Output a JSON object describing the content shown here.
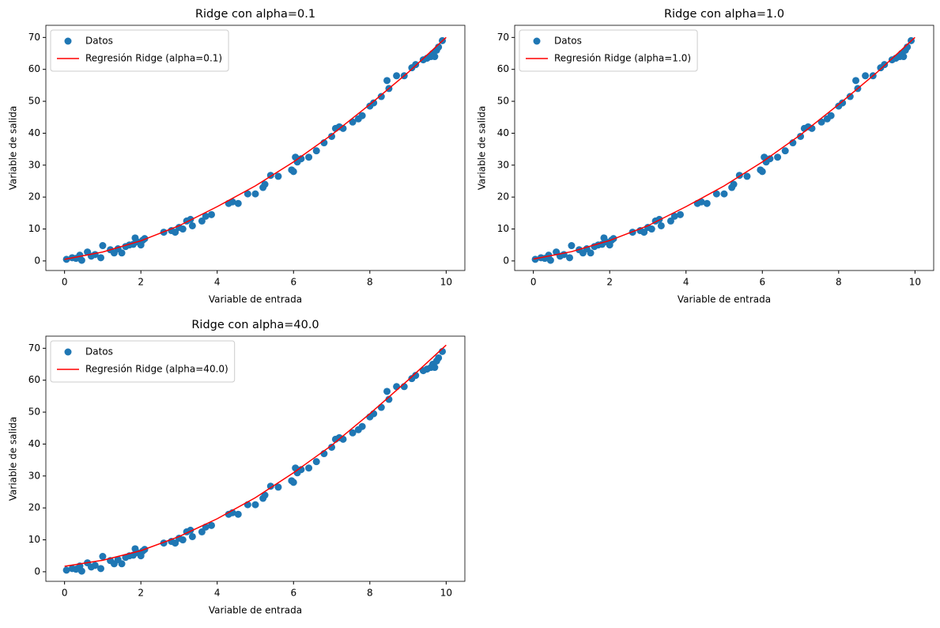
{
  "chart_data": [
    {
      "type": "scatter",
      "title": "Ridge con alpha=0.1",
      "xlabel": "Variable de entrada",
      "ylabel": "Variable de salida",
      "xlim": [
        -0.49,
        10.49
      ],
      "ylim": [
        -3,
        73.8
      ],
      "xticks": [
        0,
        2,
        4,
        6,
        8,
        10
      ],
      "yticks": [
        0,
        10,
        20,
        30,
        40,
        50,
        60,
        70
      ],
      "legend": "upper left",
      "series": [
        {
          "name": "Datos",
          "type": "scatter",
          "color": "#1f77b4",
          "x": [
            0.05,
            0.2,
            0.3,
            0.4,
            0.45,
            0.6,
            0.7,
            0.8,
            0.95,
            1.0,
            1.2,
            1.3,
            1.4,
            1.5,
            1.6,
            1.7,
            1.8,
            1.85,
            1.9,
            2.0,
            2.05,
            2.1,
            2.6,
            2.8,
            2.9,
            3.0,
            3.1,
            3.2,
            3.3,
            3.35,
            3.6,
            3.7,
            3.85,
            4.3,
            4.4,
            4.55,
            4.8,
            5.0,
            5.2,
            5.25,
            5.4,
            5.6,
            5.95,
            6.0,
            6.05,
            6.1,
            6.2,
            6.4,
            6.6,
            6.8,
            7.0,
            7.1,
            7.2,
            7.3,
            7.55,
            7.7,
            7.8,
            8.0,
            8.1,
            8.3,
            8.5,
            8.45,
            8.7,
            8.9,
            9.1,
            9.2,
            9.4,
            9.5,
            9.6,
            9.65,
            9.7,
            9.75,
            9.8,
            9.9
          ],
          "values": [
            0.5,
            1.0,
            0.8,
            1.8,
            0.2,
            2.8,
            1.5,
            2.0,
            1.0,
            4.8,
            3.5,
            2.5,
            3.8,
            2.5,
            4.5,
            5.0,
            5.2,
            7.2,
            6.0,
            5.0,
            6.5,
            7.0,
            9.0,
            9.5,
            9.0,
            10.5,
            10.0,
            12.5,
            13.0,
            11.0,
            12.5,
            14.0,
            14.5,
            18.0,
            18.5,
            18.0,
            21.0,
            21.0,
            23.0,
            24.0,
            26.8,
            26.5,
            28.5,
            28.0,
            32.5,
            31.0,
            32.0,
            32.5,
            34.5,
            37.0,
            39.0,
            41.5,
            42.0,
            41.5,
            43.5,
            44.5,
            45.5,
            48.5,
            49.5,
            51.5,
            54.0,
            56.5,
            58.0,
            58.0,
            60.5,
            61.5,
            63.0,
            63.5,
            64.0,
            65.0,
            64.0,
            66.0,
            67.0,
            69.0
          ]
        },
        {
          "name": "Regresión Ridge (alpha=0.1)",
          "type": "line",
          "color": "#ff0000",
          "x": [
            0,
            1,
            2,
            3,
            4,
            5,
            6,
            7,
            8,
            9,
            10
          ],
          "values": [
            0.5,
            2.8,
            6.3,
            11,
            17,
            23.5,
            31,
            39.5,
            49,
            59,
            70
          ]
        }
      ]
    },
    {
      "type": "scatter",
      "title": "Ridge con alpha=1.0",
      "xlabel": "Variable de entrada",
      "ylabel": "Variable de salida",
      "xlim": [
        -0.49,
        10.49
      ],
      "ylim": [
        -3,
        73.8
      ],
      "xticks": [
        0,
        2,
        4,
        6,
        8,
        10
      ],
      "yticks": [
        0,
        10,
        20,
        30,
        40,
        50,
        60,
        70
      ],
      "legend": "upper left",
      "series": [
        {
          "name": "Datos",
          "type": "scatter",
          "color": "#1f77b4",
          "x": [
            0.05,
            0.2,
            0.3,
            0.4,
            0.45,
            0.6,
            0.7,
            0.8,
            0.95,
            1.0,
            1.2,
            1.3,
            1.4,
            1.5,
            1.6,
            1.7,
            1.8,
            1.85,
            1.9,
            2.0,
            2.05,
            2.1,
            2.6,
            2.8,
            2.9,
            3.0,
            3.1,
            3.2,
            3.3,
            3.35,
            3.6,
            3.7,
            3.85,
            4.3,
            4.4,
            4.55,
            4.8,
            5.0,
            5.2,
            5.25,
            5.4,
            5.6,
            5.95,
            6.0,
            6.05,
            6.1,
            6.2,
            6.4,
            6.6,
            6.8,
            7.0,
            7.1,
            7.2,
            7.3,
            7.55,
            7.7,
            7.8,
            8.0,
            8.1,
            8.3,
            8.5,
            8.45,
            8.7,
            8.9,
            9.1,
            9.2,
            9.4,
            9.5,
            9.6,
            9.65,
            9.7,
            9.75,
            9.8,
            9.9
          ],
          "values": [
            0.5,
            1.0,
            0.8,
            1.8,
            0.2,
            2.8,
            1.5,
            2.0,
            1.0,
            4.8,
            3.5,
            2.5,
            3.8,
            2.5,
            4.5,
            5.0,
            5.2,
            7.2,
            6.0,
            5.0,
            6.5,
            7.0,
            9.0,
            9.5,
            9.0,
            10.5,
            10.0,
            12.5,
            13.0,
            11.0,
            12.5,
            14.0,
            14.5,
            18.0,
            18.5,
            18.0,
            21.0,
            21.0,
            23.0,
            24.0,
            26.8,
            26.5,
            28.5,
            28.0,
            32.5,
            31.0,
            32.0,
            32.5,
            34.5,
            37.0,
            39.0,
            41.5,
            42.0,
            41.5,
            43.5,
            44.5,
            45.5,
            48.5,
            49.5,
            51.5,
            54.0,
            56.5,
            58.0,
            58.0,
            60.5,
            61.5,
            63.0,
            63.5,
            64.0,
            65.0,
            64.0,
            66.0,
            67.0,
            69.0
          ]
        },
        {
          "name": "Regresión Ridge (alpha=1.0)",
          "type": "line",
          "color": "#ff0000",
          "x": [
            0,
            1,
            2,
            3,
            4,
            5,
            6,
            7,
            8,
            9,
            10
          ],
          "values": [
            0.6,
            2.9,
            6.4,
            11,
            17,
            23.5,
            31,
            39.5,
            49,
            59,
            70
          ]
        }
      ]
    },
    {
      "type": "scatter",
      "title": "Ridge con alpha=40.0",
      "xlabel": "Variable de entrada",
      "ylabel": "Variable de salida",
      "xlim": [
        -0.49,
        10.49
      ],
      "ylim": [
        -3,
        73.8
      ],
      "xticks": [
        0,
        2,
        4,
        6,
        8,
        10
      ],
      "yticks": [
        0,
        10,
        20,
        30,
        40,
        50,
        60,
        70
      ],
      "legend": "upper left",
      "series": [
        {
          "name": "Datos",
          "type": "scatter",
          "color": "#1f77b4",
          "x": [
            0.05,
            0.2,
            0.3,
            0.4,
            0.45,
            0.6,
            0.7,
            0.8,
            0.95,
            1.0,
            1.2,
            1.3,
            1.4,
            1.5,
            1.6,
            1.7,
            1.8,
            1.85,
            1.9,
            2.0,
            2.05,
            2.1,
            2.6,
            2.8,
            2.9,
            3.0,
            3.1,
            3.2,
            3.3,
            3.35,
            3.6,
            3.7,
            3.85,
            4.3,
            4.4,
            4.55,
            4.8,
            5.0,
            5.2,
            5.25,
            5.4,
            5.6,
            5.95,
            6.0,
            6.05,
            6.1,
            6.2,
            6.4,
            6.6,
            6.8,
            7.0,
            7.1,
            7.2,
            7.3,
            7.55,
            7.7,
            7.8,
            8.0,
            8.1,
            8.3,
            8.5,
            8.45,
            8.7,
            8.9,
            9.1,
            9.2,
            9.4,
            9.5,
            9.6,
            9.65,
            9.7,
            9.75,
            9.8,
            9.9
          ],
          "values": [
            0.5,
            1.0,
            0.8,
            1.8,
            0.2,
            2.8,
            1.5,
            2.0,
            1.0,
            4.8,
            3.5,
            2.5,
            3.8,
            2.5,
            4.5,
            5.0,
            5.2,
            7.2,
            6.0,
            5.0,
            6.5,
            7.0,
            9.0,
            9.5,
            9.0,
            10.5,
            10.0,
            12.5,
            13.0,
            11.0,
            12.5,
            14.0,
            14.5,
            18.0,
            18.5,
            18.0,
            21.0,
            21.0,
            23.0,
            24.0,
            26.8,
            26.5,
            28.5,
            28.0,
            32.5,
            31.0,
            32.0,
            32.5,
            34.5,
            37.0,
            39.0,
            41.5,
            42.0,
            41.5,
            43.5,
            44.5,
            45.5,
            48.5,
            49.5,
            51.5,
            54.0,
            56.5,
            58.0,
            58.0,
            60.5,
            61.5,
            63.0,
            63.5,
            64.0,
            65.0,
            64.0,
            66.0,
            67.0,
            69.0
          ]
        },
        {
          "name": "Regresión Ridge (alpha=40.0)",
          "type": "line",
          "color": "#ff0000",
          "x": [
            0,
            1,
            2,
            3,
            4,
            5,
            6,
            7,
            8,
            9,
            10
          ],
          "values": [
            1.7,
            3.6,
            6.6,
            11,
            16.6,
            23.2,
            31,
            39.6,
            49.5,
            60,
            71
          ]
        }
      ]
    }
  ]
}
